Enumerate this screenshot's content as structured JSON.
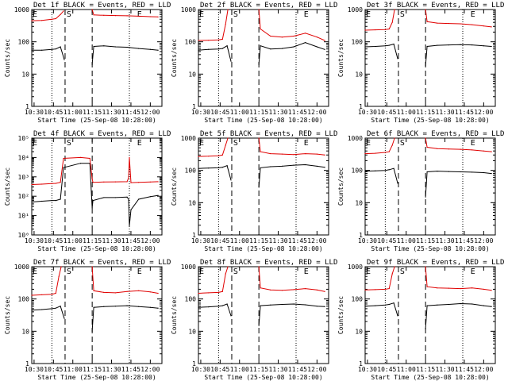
{
  "figure": {
    "xlabel": "Start Time (25-Sep-08 10:28:00)",
    "ylabel": "Counts/sec",
    "x_tick_labels": [
      "10:30",
      "10:45",
      "11:00",
      "11:15",
      "11:30",
      "11:45",
      "12:00"
    ],
    "colors": {
      "events": "#000000",
      "lld": "#e00000",
      "axes": "#000000",
      "background": "#ffffff"
    }
  },
  "chart_data": [
    {
      "type": "line",
      "title": "Det 1f BLACK = Events, RED = LLD",
      "scale": "log",
      "ylim": [
        1,
        1000
      ],
      "ytick_labels": [
        "1",
        "10",
        "100",
        "1000"
      ],
      "markers": [
        "E",
        "S",
        "E"
      ],
      "dashed_lines": [
        10.9,
        11.25
      ],
      "dotted_lines": [
        10.73,
        11.73
      ],
      "gap": [
        10.9,
        11.25
      ],
      "series": [
        {
          "name": "Events",
          "color": "#000000",
          "x": [
            10.47,
            10.6,
            10.73,
            10.78,
            10.84,
            10.89,
            11.25,
            11.27,
            11.4,
            11.55,
            11.7,
            11.85,
            12.0,
            12.1
          ],
          "values": [
            55,
            55,
            58,
            60,
            70,
            28,
            20,
            72,
            75,
            70,
            68,
            62,
            58,
            55
          ]
        },
        {
          "name": "LLD",
          "color": "#e00000",
          "x": [
            10.47,
            10.6,
            10.73,
            10.78,
            10.84,
            10.88,
            11.25,
            11.27,
            11.4,
            11.55,
            11.7,
            11.85,
            12.0,
            12.1
          ],
          "values": [
            450,
            460,
            500,
            520,
            700,
            900,
            1000,
            680,
            660,
            650,
            640,
            620,
            600,
            590
          ]
        }
      ]
    },
    {
      "type": "line",
      "title": "Det 2f BLACK = Events, RED = LLD",
      "scale": "log",
      "ylim": [
        1,
        1000
      ],
      "ytick_labels": [
        "1",
        "10",
        "100",
        "1000"
      ],
      "markers": [
        "E",
        "S",
        "E"
      ],
      "dashed_lines": [
        10.9,
        11.25
      ],
      "dotted_lines": [
        10.73,
        11.73
      ],
      "gap": [
        10.9,
        11.25
      ],
      "series": [
        {
          "name": "Events",
          "color": "#000000",
          "x": [
            10.47,
            10.6,
            10.73,
            10.78,
            10.84,
            10.89,
            11.25,
            11.27,
            11.4,
            11.55,
            11.7,
            11.85,
            12.0,
            12.1
          ],
          "values": [
            55,
            58,
            60,
            62,
            75,
            25,
            20,
            75,
            60,
            62,
            70,
            95,
            70,
            58
          ]
        },
        {
          "name": "LLD",
          "color": "#e00000",
          "x": [
            10.47,
            10.6,
            10.73,
            10.78,
            10.82,
            10.85,
            11.25,
            11.27,
            11.4,
            11.55,
            11.7,
            11.85,
            12.0,
            12.1
          ],
          "values": [
            110,
            112,
            115,
            120,
            350,
            1000,
            1000,
            250,
            150,
            140,
            150,
            185,
            140,
            110
          ]
        }
      ]
    },
    {
      "type": "line",
      "title": "Det 3f BLACK = Events, RED = LLD",
      "scale": "log",
      "ylim": [
        1,
        1000
      ],
      "ytick_labels": [
        "1",
        "10",
        "100",
        "1000"
      ],
      "markers": [
        "E",
        "S",
        "E"
      ],
      "dashed_lines": [
        10.9,
        11.25
      ],
      "dotted_lines": [
        10.73,
        11.73
      ],
      "gap": [
        10.9,
        11.25
      ],
      "series": [
        {
          "name": "Events",
          "color": "#000000",
          "x": [
            10.47,
            10.6,
            10.73,
            10.78,
            10.84,
            10.89,
            11.25,
            11.27,
            11.4,
            11.55,
            11.7,
            11.85,
            12.0,
            12.1
          ],
          "values": [
            70,
            72,
            75,
            78,
            85,
            30,
            18,
            72,
            78,
            80,
            82,
            80,
            75,
            72
          ]
        },
        {
          "name": "LLD",
          "color": "#e00000",
          "x": [
            10.47,
            10.6,
            10.73,
            10.78,
            10.82,
            10.85,
            11.25,
            11.27,
            11.4,
            11.55,
            11.7,
            11.85,
            12.0,
            12.1
          ],
          "values": [
            230,
            235,
            240,
            250,
            400,
            1000,
            1000,
            420,
            380,
            370,
            360,
            340,
            310,
            290
          ]
        }
      ]
    },
    {
      "type": "line",
      "title": "Det 4f BLACK = Events, RED = LLD",
      "scale": "log",
      "ylim": [
        1,
        100000
      ],
      "ytick_labels": [
        "10⁰",
        "10¹",
        "10²",
        "10³",
        "10⁴",
        "10⁵"
      ],
      "markers": [
        "E",
        "S",
        "E"
      ],
      "dashed_lines": [
        10.9,
        11.25
      ],
      "dotted_lines": [
        10.73,
        11.73
      ],
      "gap": [],
      "series": [
        {
          "name": "Events",
          "color": "#000000",
          "x": [
            10.47,
            10.6,
            10.73,
            10.78,
            10.84,
            10.88,
            11.1,
            11.22,
            11.25,
            11.26,
            11.4,
            11.55,
            11.7,
            11.72,
            11.73,
            11.75,
            11.85,
            12.0,
            12.1
          ],
          "values": [
            50,
            55,
            60,
            60,
            70,
            3000,
            5000,
            5000,
            25,
            60,
            85,
            85,
            90,
            70,
            3,
            20,
            70,
            95,
            110
          ]
        },
        {
          "name": "LLD",
          "color": "#e00000",
          "x": [
            10.47,
            10.6,
            10.73,
            10.78,
            10.84,
            10.88,
            11.1,
            11.22,
            11.25,
            11.26,
            11.4,
            11.55,
            11.7,
            11.72,
            11.73,
            11.75,
            11.85,
            12.0,
            12.1
          ],
          "values": [
            400,
            420,
            450,
            460,
            520,
            9000,
            10000,
            9000,
            800,
            520,
            540,
            550,
            560,
            900,
            10000,
            500,
            520,
            540,
            560
          ]
        }
      ]
    },
    {
      "type": "line",
      "title": "Det 5f BLACK = Events, RED = LLD",
      "scale": "log",
      "ylim": [
        1,
        1000
      ],
      "ytick_labels": [
        "1",
        "10",
        "100",
        "1000"
      ],
      "markers": [
        "E",
        "S",
        "E"
      ],
      "dashed_lines": [
        10.9,
        11.25
      ],
      "dotted_lines": [
        10.73,
        11.73
      ],
      "gap": [
        10.9,
        11.25
      ],
      "series": [
        {
          "name": "Events",
          "color": "#000000",
          "x": [
            10.47,
            10.6,
            10.73,
            10.78,
            10.84,
            10.89,
            11.25,
            11.27,
            11.4,
            11.55,
            11.7,
            11.85,
            12.0,
            12.1
          ],
          "values": [
            115,
            118,
            120,
            125,
            140,
            50,
            30,
            120,
            130,
            135,
            145,
            150,
            135,
            125
          ]
        },
        {
          "name": "LLD",
          "color": "#e00000",
          "x": [
            10.47,
            10.6,
            10.73,
            10.78,
            10.82,
            10.85,
            11.25,
            11.27,
            11.4,
            11.55,
            11.7,
            11.85,
            12.0,
            12.1
          ],
          "values": [
            270,
            275,
            285,
            300,
            600,
            1000,
            1000,
            380,
            330,
            320,
            310,
            330,
            320,
            300
          ]
        }
      ]
    },
    {
      "type": "line",
      "title": "Det 6f BLACK = Events, RED = LLD",
      "scale": "log",
      "ylim": [
        1,
        1000
      ],
      "ytick_labels": [
        "1",
        "10",
        "100",
        "1000"
      ],
      "markers": [
        "E",
        "S",
        "E"
      ],
      "dashed_lines": [
        10.9,
        11.25
      ],
      "dotted_lines": [
        10.73,
        11.73
      ],
      "gap": [
        10.9,
        11.25
      ],
      "series": [
        {
          "name": "Events",
          "color": "#000000",
          "x": [
            10.47,
            10.6,
            10.73,
            10.78,
            10.84,
            10.89,
            11.25,
            11.27,
            11.4,
            11.55,
            11.7,
            11.85,
            12.0,
            12.1
          ],
          "values": [
            95,
            97,
            100,
            105,
            115,
            40,
            15,
            90,
            95,
            92,
            90,
            88,
            85,
            80
          ]
        },
        {
          "name": "LLD",
          "color": "#e00000",
          "x": [
            10.47,
            10.6,
            10.73,
            10.78,
            10.82,
            10.85,
            11.25,
            11.27,
            11.4,
            11.55,
            11.7,
            11.85,
            12.0,
            12.1
          ],
          "values": [
            330,
            340,
            360,
            380,
            600,
            1000,
            1000,
            520,
            470,
            460,
            450,
            430,
            400,
            380
          ]
        }
      ]
    },
    {
      "type": "line",
      "title": "Det 7f BLACK = Events, RED = LLD",
      "scale": "log",
      "ylim": [
        1,
        1000
      ],
      "ytick_labels": [
        "1",
        "10",
        "100",
        "1000"
      ],
      "markers": [
        "E",
        "S",
        "E"
      ],
      "dashed_lines": [
        10.9,
        11.25
      ],
      "dotted_lines": [
        10.73,
        11.73
      ],
      "gap": [
        10.9,
        11.25
      ],
      "series": [
        {
          "name": "Events",
          "color": "#000000",
          "x": [
            10.47,
            10.6,
            10.73,
            10.78,
            10.84,
            10.89,
            11.25,
            11.27,
            11.4,
            11.55,
            11.7,
            11.85,
            12.0,
            12.1
          ],
          "values": [
            45,
            47,
            50,
            52,
            60,
            25,
            10,
            55,
            58,
            60,
            62,
            58,
            55,
            52
          ]
        },
        {
          "name": "LLD",
          "color": "#e00000",
          "x": [
            10.47,
            10.6,
            10.73,
            10.78,
            10.82,
            10.85,
            11.25,
            11.27,
            11.4,
            11.55,
            11.7,
            11.85,
            12.0,
            12.1
          ],
          "values": [
            130,
            135,
            140,
            150,
            500,
            1000,
            1000,
            180,
            160,
            155,
            170,
            180,
            165,
            150
          ]
        }
      ]
    },
    {
      "type": "line",
      "title": "Det 8f BLACK = Events, RED = LLD",
      "scale": "log",
      "ylim": [
        1,
        1000
      ],
      "ytick_labels": [
        "1",
        "10",
        "100",
        "1000"
      ],
      "markers": [
        "E",
        "S",
        "E"
      ],
      "dashed_lines": [
        10.9,
        11.25
      ],
      "dotted_lines": [
        10.73,
        11.73
      ],
      "gap": [
        10.9,
        11.25
      ],
      "series": [
        {
          "name": "Events",
          "color": "#000000",
          "x": [
            10.47,
            10.6,
            10.73,
            10.78,
            10.84,
            10.89,
            11.25,
            11.27,
            11.4,
            11.55,
            11.7,
            11.85,
            12.0,
            12.1
          ],
          "values": [
            55,
            57,
            60,
            62,
            70,
            30,
            15,
            62,
            65,
            68,
            70,
            66,
            60,
            58
          ]
        },
        {
          "name": "LLD",
          "color": "#e00000",
          "x": [
            10.47,
            10.6,
            10.73,
            10.78,
            10.82,
            10.85,
            11.25,
            11.27,
            11.4,
            11.55,
            11.7,
            11.85,
            12.0,
            12.1
          ],
          "values": [
            150,
            155,
            160,
            170,
            600,
            1000,
            1000,
            220,
            190,
            185,
            195,
            210,
            190,
            170
          ]
        }
      ]
    },
    {
      "type": "line",
      "title": "Det 9f BLACK = Events, RED = LLD",
      "scale": "log",
      "ylim": [
        1,
        1000
      ],
      "ytick_labels": [
        "1",
        "10",
        "100",
        "1000"
      ],
      "markers": [
        "E",
        "S",
        "E"
      ],
      "dashed_lines": [
        10.9,
        11.25
      ],
      "dotted_lines": [
        10.73,
        11.73
      ],
      "gap": [
        10.9,
        11.25
      ],
      "series": [
        {
          "name": "Events",
          "color": "#000000",
          "x": [
            10.47,
            10.6,
            10.73,
            10.78,
            10.84,
            10.89,
            11.25,
            11.27,
            11.4,
            11.55,
            11.7,
            11.85,
            12.0,
            12.1
          ],
          "values": [
            60,
            62,
            65,
            68,
            75,
            30,
            12,
            62,
            65,
            68,
            72,
            70,
            62,
            58
          ]
        },
        {
          "name": "LLD",
          "color": "#e00000",
          "x": [
            10.47,
            10.6,
            10.73,
            10.78,
            10.82,
            10.85,
            11.25,
            11.27,
            11.4,
            11.55,
            11.7,
            11.85,
            12.0,
            12.1
          ],
          "values": [
            190,
            195,
            200,
            210,
            600,
            1000,
            1000,
            240,
            220,
            215,
            210,
            220,
            200,
            185
          ]
        }
      ]
    }
  ]
}
